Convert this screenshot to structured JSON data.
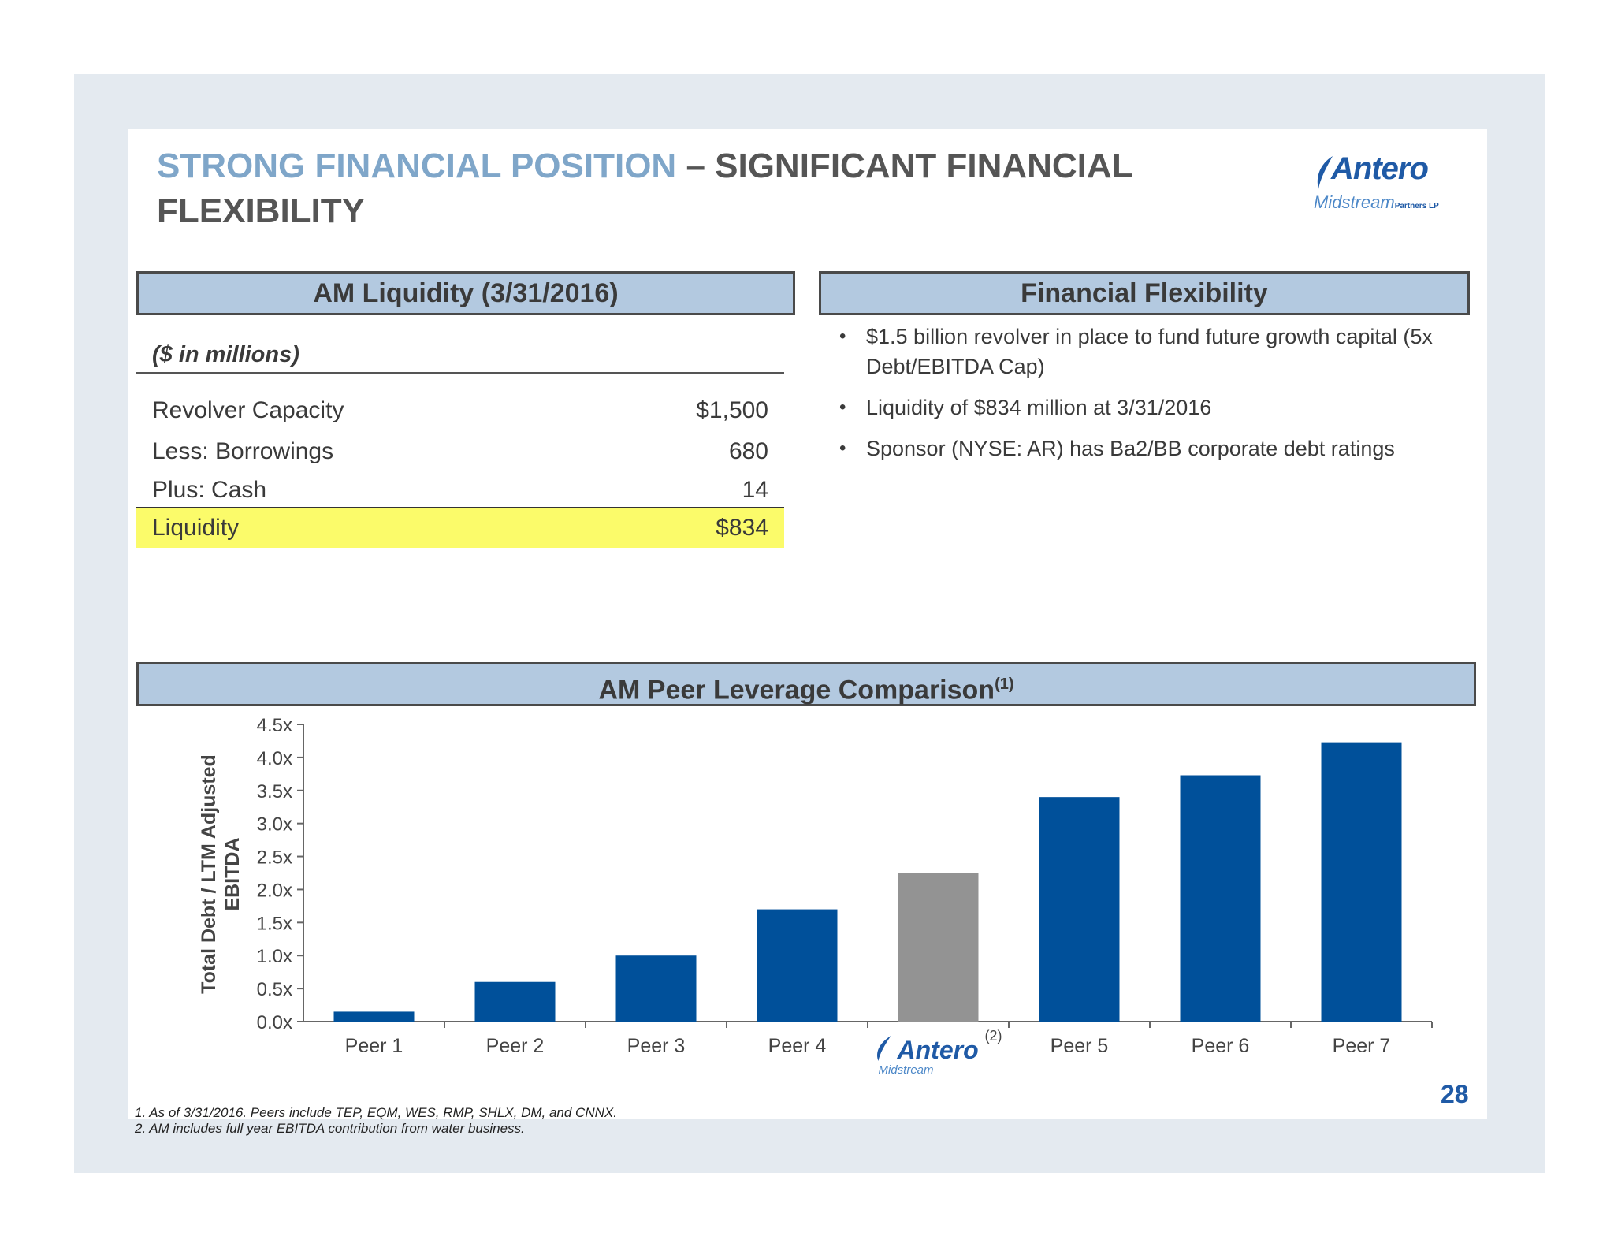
{
  "title": {
    "accent": "STRONG FINANCIAL POSITION",
    "rest": " – SIGNIFICANT FINANCIAL FLEXIBILITY"
  },
  "logo": {
    "main": "Antero",
    "sub": "Midstream",
    "sub_small": "Partners LP"
  },
  "liquidity": {
    "header": "AM Liquidity (3/31/2016)",
    "units": "($ in millions)",
    "rows": [
      {
        "label": "Revolver Capacity",
        "value": "$1,500"
      },
      {
        "label": "Less: Borrowings",
        "value": "680"
      },
      {
        "label": "Plus: Cash",
        "value": "14"
      }
    ],
    "total": {
      "label": "Liquidity",
      "value": "$834"
    },
    "highlight_color": "#fbfb6a"
  },
  "flexibility": {
    "header": "Financial Flexibility",
    "bullets": [
      "$1.5 billion revolver in place to fund future growth capital (5x Debt/EBITDA Cap)",
      "Liquidity of $834 million at 3/31/2016",
      "Sponsor (NYSE: AR) has Ba2/BB corporate debt ratings"
    ]
  },
  "peer": {
    "header": "AM Peer Leverage Comparison",
    "header_sup": "(1)",
    "am_footnote_marker": "(2)"
  },
  "chart_data": {
    "type": "bar",
    "categories": [
      "Peer 1",
      "Peer 2",
      "Peer 3",
      "Peer 4",
      "Antero Midstream",
      "Peer 5",
      "Peer 6",
      "Peer 7"
    ],
    "values": [
      0.15,
      0.6,
      1.0,
      1.7,
      2.25,
      3.4,
      3.73,
      4.23
    ],
    "ylabel": "Total Debt / LTM Adjusted EBITDA",
    "ylim": [
      0,
      4.5
    ],
    "yticks": [
      "0.0x",
      "0.5x",
      "1.0x",
      "1.5x",
      "2.0x",
      "2.5x",
      "3.0x",
      "3.5x",
      "4.0x",
      "4.5x"
    ],
    "bar_color": "#00509a",
    "highlight_color": "#939393",
    "highlight_index": 4,
    "grid": false
  },
  "footnotes": [
    "1.  As of 3/31/2016.  Peers include TEP, EQM, WES, RMP, SHLX, DM, and CNNX.",
    "2.  AM includes full year EBITDA contribution from water business."
  ],
  "page_number": "28"
}
